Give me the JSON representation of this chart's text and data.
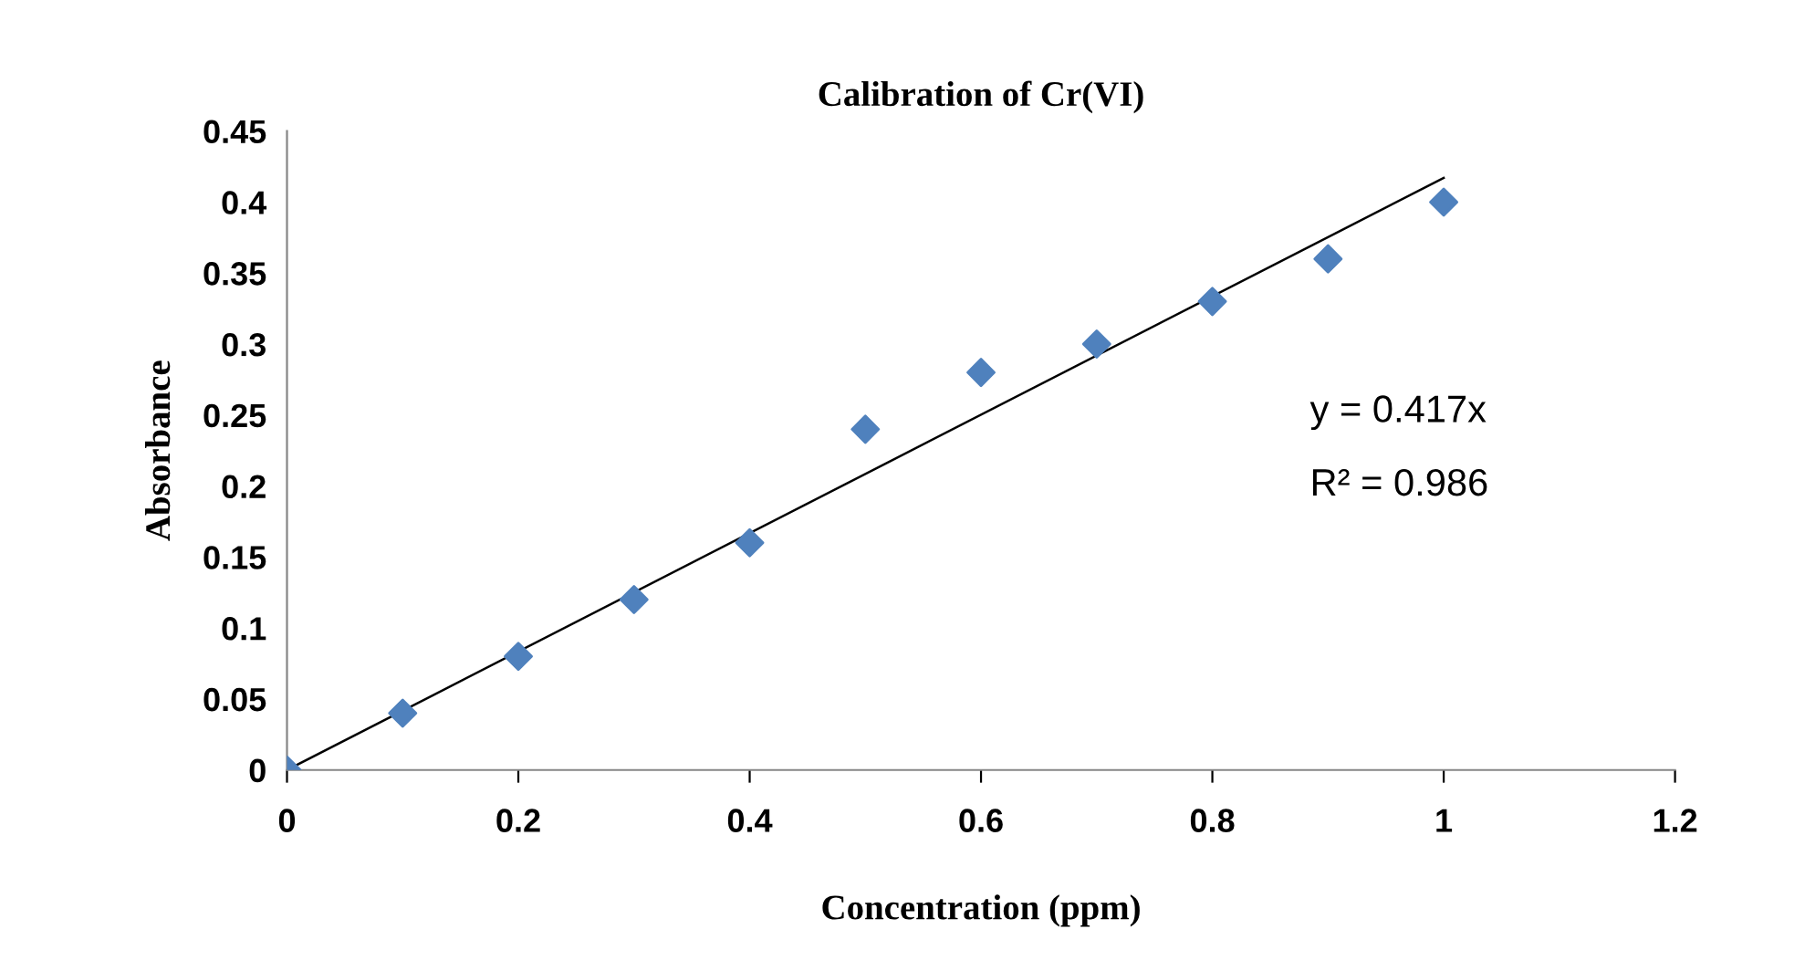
{
  "chart_data": {
    "type": "scatter",
    "title": "Calibration of Cr(VI)",
    "xlabel": "Concentration (ppm)",
    "ylabel": "Absorbance",
    "series": [
      {
        "color": "#4f81bd",
        "marker": "diamond",
        "x": [
          0,
          0.1,
          0.2,
          0.3,
          0.4,
          0.5,
          0.6,
          0.7,
          0.8,
          0.9,
          1
        ],
        "values": [
          0,
          0.04,
          0.08,
          0.12,
          0.16,
          0.24,
          0.28,
          0.3,
          0.33,
          0.36,
          0.4
        ]
      },
      {
        "type": "line",
        "color": "#000000",
        "marker": "none",
        "line_style": "solid",
        "x": [
          0,
          1
        ],
        "values": [
          0,
          0.417
        ]
      }
    ],
    "annotations": [
      "y = 0.417x",
      "R² = 0.986"
    ],
    "xlim": [
      0,
      1.2
    ],
    "xticks": [
      0,
      0.2,
      0.4,
      0.6,
      0.8,
      1,
      1.2
    ],
    "ylim": [
      0,
      0.45
    ],
    "yticks": [
      0,
      0.05,
      0.1,
      0.15,
      0.2,
      0.25,
      0.3,
      0.35,
      0.4,
      0.45
    ],
    "grid": false
  }
}
